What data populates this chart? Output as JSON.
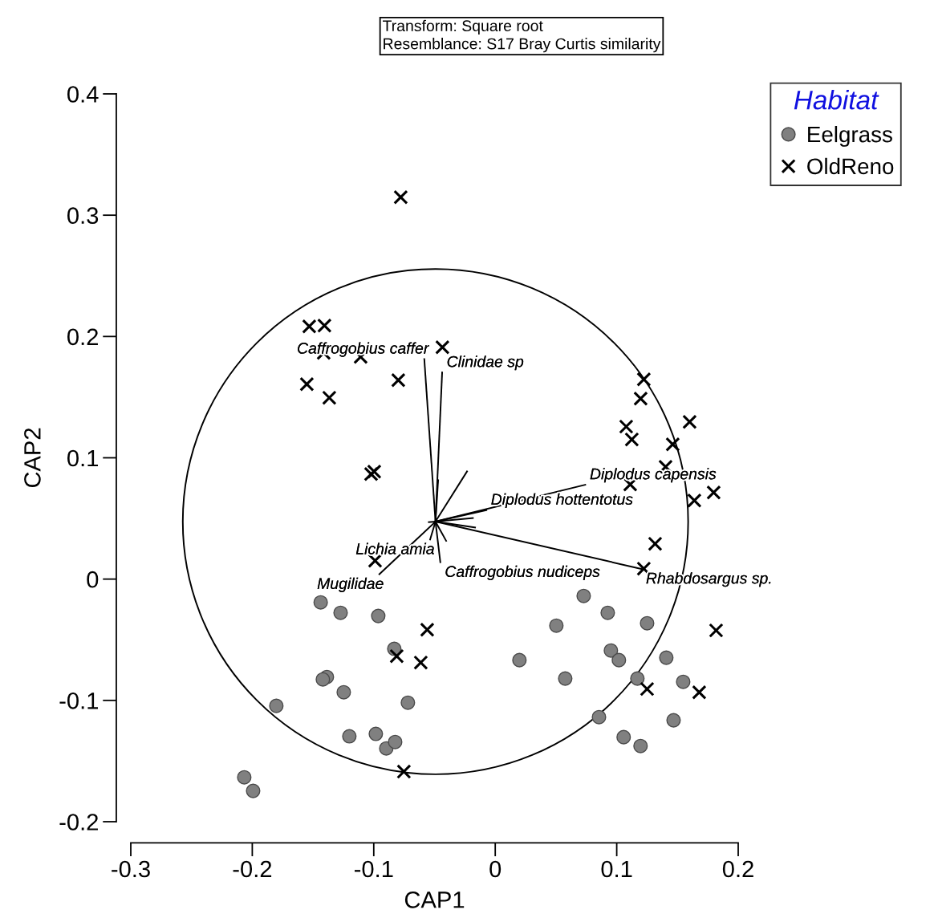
{
  "chart_data": {
    "type": "scatter",
    "xlabel": "CAP1",
    "ylabel": "CAP2",
    "legend_title": "Habitat",
    "xlim": [
      -0.3,
      0.2
    ],
    "ylim": [
      -0.2,
      0.4
    ],
    "xticks": [
      -0.3,
      -0.2,
      -0.1,
      0,
      0.1,
      0.2
    ],
    "yticks": [
      -0.2,
      -0.1,
      0,
      0.1,
      0.2,
      0.3,
      0.4
    ],
    "grid": false,
    "legend": "top right",
    "annotations": [
      "Transform: Square root\nResemblance: S17 Bray Curtis similarity"
    ],
    "series": [
      {
        "type": "line",
        "name": "Caffrogobius caffer",
        "color": "#000000",
        "line_style": "solid",
        "x": [
          -0.0492,
          -0.0584
        ],
        "values": [
          0.0474,
          0.1814
        ]
      },
      {
        "type": "line",
        "name": "Clinidae sp",
        "color": "#000000",
        "line_style": "solid",
        "x": [
          -0.0492,
          -0.0437
        ],
        "values": [
          0.0474,
          0.1704
        ]
      },
      {
        "type": "line",
        "color": "#000000",
        "line_style": "solid",
        "x": [
          -0.0492,
          -0.047
        ],
        "values": [
          0.0474,
          0.0816
        ]
      },
      {
        "type": "line",
        "color": "#000000",
        "line_style": "solid",
        "x": [
          -0.0492,
          -0.0232
        ],
        "values": [
          0.0474,
          0.0888
        ]
      },
      {
        "type": "line",
        "name": "Diplodus capensis",
        "color": "#000000",
        "line_style": "solid",
        "x": [
          -0.0492,
          0.0741
        ],
        "values": [
          0.0474,
          0.0778
        ]
      },
      {
        "type": "line",
        "name": "Diplodus hottentotus",
        "color": "#000000",
        "line_style": "solid",
        "x": [
          -0.0492,
          -0.0073
        ],
        "values": [
          0.0474,
          0.0569
        ]
      },
      {
        "type": "line",
        "color": "#000000",
        "line_style": "solid",
        "x": [
          -0.0492,
          -0.0184
        ],
        "values": [
          0.0474,
          0.0503
        ]
      },
      {
        "type": "line",
        "color": "#000000",
        "line_style": "solid",
        "x": [
          -0.0492,
          -0.0166
        ],
        "values": [
          0.0474,
          0.0425
        ]
      },
      {
        "type": "line",
        "name": "Rhabdosargus sp.",
        "color": "#000000",
        "line_style": "solid",
        "x": [
          -0.0492,
          0.1203
        ],
        "values": [
          0.0474,
          0.0084
        ]
      },
      {
        "type": "line",
        "color": "#000000",
        "line_style": "solid",
        "x": [
          -0.0492,
          -0.0404
        ],
        "values": [
          0.0474,
          0.0315
        ]
      },
      {
        "type": "line",
        "name": "Caffrogobius nudiceps",
        "color": "#000000",
        "line_style": "solid",
        "x": [
          -0.0492,
          -0.0452
        ],
        "values": [
          0.0474,
          0.0139
        ]
      },
      {
        "type": "line",
        "name": "Lichia amia",
        "color": "#000000",
        "line_style": "solid",
        "x": [
          -0.0492,
          -0.0536
        ],
        "values": [
          0.0474,
          0.0326
        ]
      },
      {
        "type": "line",
        "name": "Mugilidae",
        "color": "#000000",
        "line_style": "solid",
        "x": [
          -0.0492,
          -0.0954
        ],
        "values": [
          0.0474,
          0.004
        ]
      },
      {
        "type": "line",
        "color": "#000000",
        "line_style": "solid",
        "x": [
          -0.0492,
          -0.0547
        ],
        "values": [
          0.0474,
          0.047
        ]
      },
      {
        "name": "Eelgrass",
        "color": "#808080",
        "marker": "circle",
        "x": [
          -0.1437,
          -0.1273,
          -0.0963,
          -0.0831,
          -0.1386,
          -0.1419,
          -0.1247,
          -0.1802,
          -0.0719,
          -0.1201,
          -0.0983,
          -0.0897,
          -0.0824,
          -0.2066,
          -0.1993,
          0.0728,
          0.0926,
          0.0503,
          0.125,
          0.0199,
          0.0952,
          0.1018,
          0.1408,
          0.0576,
          0.117,
          0.1547,
          0.0854,
          0.1468,
          0.1057,
          0.1196
        ],
        "values": [
          -0.0192,
          -0.0278,
          -0.0304,
          -0.0575,
          -0.0807,
          -0.0827,
          -0.0933,
          -0.1045,
          -0.1019,
          -0.1296,
          -0.1276,
          -0.1396,
          -0.1343,
          -0.1634,
          -0.1746,
          -0.0139,
          -0.0278,
          -0.0384,
          -0.0364,
          -0.0668,
          -0.0589,
          -0.0668,
          -0.0648,
          -0.082,
          -0.082,
          -0.0847,
          -0.1138,
          -0.1164,
          -0.1303,
          -0.1376
        ]
      },
      {
        "name": "OldReno",
        "color": "#000000",
        "marker": "cross",
        "x": [
          -0.1531,
          -0.1406,
          -0.0435,
          -0.1412,
          -0.1108,
          -0.0798,
          -0.1551,
          -0.1366,
          -0.1022,
          -0.0996,
          -0.0989,
          -0.0778,
          0.1223,
          0.1197,
          0.16,
          0.1078,
          0.1124,
          0.1461,
          0.1402,
          0.1111,
          0.1798,
          0.1639,
          0.1316,
          0.1223,
          -0.056,
          -0.0811,
          -0.0613,
          -0.0752,
          0.1818,
          0.125,
          0.1679
        ],
        "values": [
          0.2083,
          0.209,
          0.1911,
          0.1865,
          0.1832,
          0.164,
          0.1607,
          0.1495,
          0.0866,
          0.0886,
          0.0152,
          0.3148,
          0.1647,
          0.1488,
          0.1296,
          0.1257,
          0.1151,
          0.1111,
          0.0926,
          0.078,
          0.0714,
          0.0648,
          0.0291,
          0.0086,
          -0.0417,
          -0.0635,
          -0.0688,
          -0.1587,
          -0.0423,
          -0.0906,
          -0.0933
        ]
      }
    ]
  }
}
